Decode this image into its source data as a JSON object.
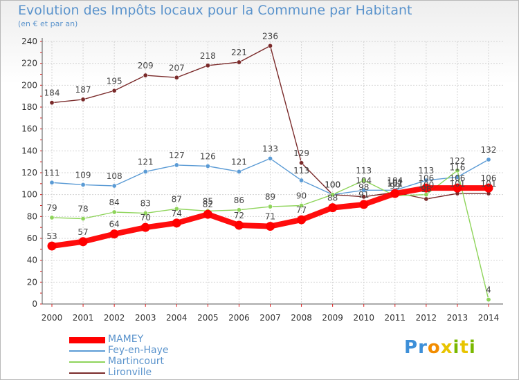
{
  "header": {
    "title": "Evolution des Impôts locaux pour la Commune par Habitant",
    "subtitle": "(en € et par an)"
  },
  "chart_data": {
    "type": "line",
    "title": "Evolution des Impôts locaux pour la Commune par Habitant",
    "subtitle": "(en € et par an)",
    "xlabel": "",
    "ylabel": "",
    "x": [
      "2000",
      "2001",
      "2002",
      "2003",
      "2004",
      "2005",
      "2006",
      "2007",
      "2008",
      "2009",
      "2010",
      "2011",
      "2012",
      "2013",
      "2014"
    ],
    "ylim": [
      0,
      240
    ],
    "yticks": [
      0,
      20,
      40,
      60,
      80,
      100,
      120,
      140,
      160,
      180,
      200,
      220,
      240
    ],
    "grid": true,
    "legend_position": "bottom-left",
    "series": [
      {
        "name": "MAMEY",
        "color": "#ff0000",
        "values": [
          53,
          57,
          64,
          70,
          74,
          82,
          72,
          71,
          77,
          88,
          91,
          101,
          106,
          106,
          106
        ]
      },
      {
        "name": "Fey-en-Haye",
        "color": "#5b9bd5",
        "values": [
          111,
          109,
          108,
          121,
          127,
          126,
          121,
          133,
          113,
          100,
          104,
          104,
          113,
          116,
          132
        ]
      },
      {
        "name": "Martincourt",
        "color": "#8ed45a",
        "values": [
          79,
          78,
          84,
          83,
          87,
          85,
          86,
          89,
          90,
          100,
          113,
          99,
          100,
          122,
          4
        ]
      },
      {
        "name": "Lironville",
        "color": "#7a2a2a",
        "values": [
          184,
          187,
          195,
          209,
          207,
          218,
          221,
          236,
          129,
          100,
          98,
          102,
          96,
          101,
          101
        ]
      }
    ],
    "point_labels": {
      "MAMEY": [
        "53",
        "57",
        "64",
        "70",
        "74",
        "82",
        "72",
        "71",
        "77",
        "88",
        "91",
        "101",
        "106",
        "106",
        "106"
      ],
      "Fey-en-Haye": [
        "111",
        "109",
        "108",
        "121",
        "127",
        "126",
        "121",
        "133",
        "113",
        "100",
        "104",
        "104",
        "113",
        "116",
        "132"
      ],
      "Martincourt": [
        "79",
        "78",
        "84",
        "83",
        "87",
        "85",
        "86",
        "89",
        "90",
        "100",
        "113",
        "99",
        "100",
        "122",
        "4"
      ],
      "Lironville": [
        "184",
        "187",
        "195",
        "209",
        "207",
        "218",
        "221",
        "236",
        "129",
        "100",
        "98",
        "102",
        "96",
        "101",
        "101"
      ]
    }
  },
  "legend": {
    "items": [
      {
        "label": "MAMEY",
        "color": "#ff0000"
      },
      {
        "label": "Fey-en-Haye",
        "color": "#5b9bd5"
      },
      {
        "label": "Martincourt",
        "color": "#8ed45a"
      },
      {
        "label": "Lironville",
        "color": "#7a2a2a"
      }
    ]
  },
  "logo": {
    "letters": [
      "P",
      "r",
      "o",
      "x",
      "i",
      "t",
      "i"
    ],
    "colors": [
      "#3d8fd8",
      "#3d8fd8",
      "#f28c00",
      "#e8c400",
      "#7ab800",
      "#e8c400",
      "#7ab800"
    ]
  }
}
